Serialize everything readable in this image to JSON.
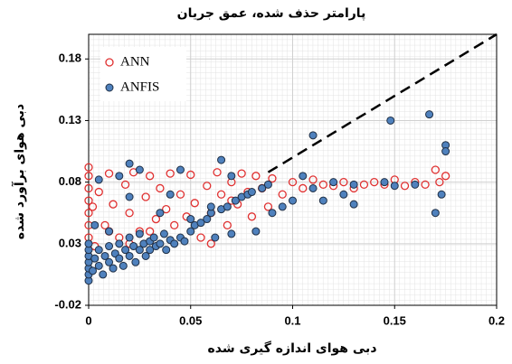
{
  "chart_data": {
    "type": "scatter",
    "title": "پارامتر حذف شده، عمق جریان",
    "x_label": "دبی هوای اندازه گیری شده",
    "y_label": "دبی هوای برآورد شده",
    "xlim": [
      0,
      0.2
    ],
    "xticks": [
      0,
      0.05,
      0.1,
      0.15,
      0.2
    ],
    "ylim": [
      -0.02,
      0.2
    ],
    "yticks": [
      -0.02,
      0.03,
      0.08,
      0.13,
      0.18
    ],
    "grid": true,
    "legend": "upper left",
    "reference_lines": [
      {
        "x": [
          0.088,
          0.2
        ],
        "y": [
          0.088,
          0.2
        ],
        "color": "#000000",
        "style": "dashed"
      }
    ],
    "series": [
      {
        "name": "ANN",
        "color": "#e03030",
        "marker": "open",
        "x": [
          0,
          0,
          0,
          0,
          0,
          0,
          0,
          0.002,
          0.003,
          0.005,
          0.008,
          0.01,
          0.012,
          0.015,
          0.018,
          0.02,
          0.022,
          0.025,
          0.028,
          0.03,
          0.033,
          0.035,
          0.038,
          0.04,
          0.042,
          0.045,
          0.048,
          0.05,
          0.052,
          0.055,
          0.058,
          0.06,
          0.063,
          0.065,
          0.068,
          0.07,
          0.073,
          0.075,
          0.078,
          0.08,
          0.082,
          0.085,
          0.088,
          0.09,
          0.095,
          0.1,
          0.105,
          0.11,
          0.115,
          0.12,
          0.125,
          0.13,
          0.135,
          0.14,
          0.145,
          0.15,
          0.155,
          0.16,
          0.165,
          0.17,
          0.172,
          0.175,
          0.01,
          0.02,
          0.03,
          0.06,
          0.07
        ],
        "values": [
          0.092,
          0.085,
          0.075,
          0.065,
          0.055,
          0.045,
          0.035,
          0.06,
          0.028,
          0.072,
          0.045,
          0.087,
          0.062,
          0.035,
          0.078,
          0.055,
          0.088,
          0.04,
          0.068,
          0.085,
          0.05,
          0.075,
          0.058,
          0.087,
          0.045,
          0.07,
          0.052,
          0.086,
          0.063,
          0.035,
          0.077,
          0.055,
          0.088,
          0.07,
          0.045,
          0.08,
          0.062,
          0.087,
          0.072,
          0.052,
          0.085,
          0.075,
          0.06,
          0.083,
          0.07,
          0.08,
          0.075,
          0.082,
          0.078,
          0.077,
          0.08,
          0.075,
          0.078,
          0.08,
          0.078,
          0.082,
          0.077,
          0.08,
          0.078,
          0.09,
          0.08,
          0.085,
          0.04,
          0.03,
          0.04,
          0.03,
          0.065
        ]
      },
      {
        "name": "ANFIS",
        "color": "#4f81bd",
        "marker": "filled",
        "x": [
          0,
          0,
          0,
          0,
          0,
          0,
          0,
          0.002,
          0.003,
          0.005,
          0.005,
          0.007,
          0.008,
          0.01,
          0.01,
          0.012,
          0.013,
          0.015,
          0.015,
          0.017,
          0.018,
          0.02,
          0.02,
          0.022,
          0.023,
          0.025,
          0.025,
          0.027,
          0.028,
          0.03,
          0.03,
          0.032,
          0.033,
          0.035,
          0.037,
          0.038,
          0.04,
          0.042,
          0.045,
          0.047,
          0.05,
          0.052,
          0.055,
          0.058,
          0.06,
          0.062,
          0.065,
          0.068,
          0.07,
          0.072,
          0.075,
          0.078,
          0.08,
          0.082,
          0.085,
          0.088,
          0.09,
          0.095,
          0.1,
          0.105,
          0.11,
          0.11,
          0.115,
          0.12,
          0.125,
          0.13,
          0.13,
          0.145,
          0.148,
          0.15,
          0.16,
          0.167,
          0.17,
          0.173,
          0.175,
          0.175,
          0.02,
          0.015,
          0.025,
          0.005,
          0.04,
          0.045,
          0.065,
          0.07,
          0.06,
          0.035,
          0.05,
          0.003,
          0.01,
          0.02
        ],
        "values": [
          0,
          0.005,
          0.01,
          0.015,
          0.02,
          0.025,
          0.03,
          0.008,
          0.018,
          0.012,
          0.025,
          0.005,
          0.02,
          0.015,
          0.028,
          0.01,
          0.022,
          0.018,
          0.03,
          0.012,
          0.025,
          0.02,
          0.035,
          0.028,
          0.015,
          0.025,
          0.038,
          0.03,
          0.02,
          0.032,
          0.025,
          0.035,
          0.028,
          0.03,
          0.038,
          0.025,
          0.033,
          0.03,
          0.035,
          0.032,
          0.04,
          0.045,
          0.047,
          0.05,
          0.055,
          0.035,
          0.058,
          0.06,
          0.038,
          0.065,
          0.068,
          0.07,
          0.072,
          0.04,
          0.075,
          0.078,
          0.055,
          0.06,
          0.065,
          0.085,
          0.075,
          0.118,
          0.065,
          0.08,
          0.07,
          0.078,
          0.062,
          0.08,
          0.13,
          0.077,
          0.078,
          0.135,
          0.055,
          0.07,
          0.11,
          0.105,
          0.095,
          0.085,
          0.09,
          0.082,
          0.07,
          0.09,
          0.098,
          0.085,
          0.06,
          0.055,
          0.05,
          0.045,
          0.04,
          0.068
        ]
      }
    ]
  }
}
